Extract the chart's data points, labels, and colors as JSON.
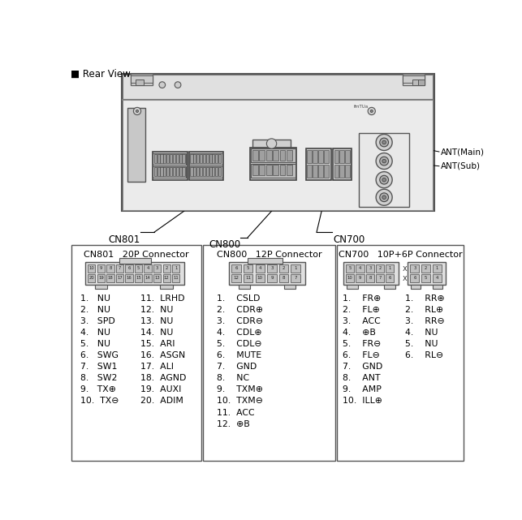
{
  "background_color": "#ffffff",
  "rear_view_label": "■ Rear View",
  "ant_main_label": "ANT(Main)",
  "ant_sub_label": "ANT(Sub)",
  "cn801_label": "CN801",
  "cn800_label": "CN800",
  "cn700_label": "CN700",
  "cn801_title": "CN801   20P Connector",
  "cn800_title": "CN800   12P Connector",
  "cn700_title": "CN700   10P+6P Connector",
  "cn801_left": [
    "1.   NU",
    "2.   NU",
    "3.   SPD",
    "4.   NU",
    "5.   NU",
    "6.   SWG",
    "7.   SW1",
    "8.   SW2",
    "9.   TX⊕",
    "10.  TX⊖"
  ],
  "cn801_right": [
    "11.  LRHD",
    "12.  NU",
    "13.  NU",
    "14.  NU",
    "15.  ARI",
    "16.  ASGN",
    "17.  ALI",
    "18.  AGND",
    "19.  AUXI",
    "20.  ADIM"
  ],
  "cn800_pins": [
    "1.    CSLD",
    "2.    CDR⊕",
    "3.    CDR⊖",
    "4.    CDL⊕",
    "5.    CDL⊖",
    "6.    MUTE",
    "7.    GND",
    "8.    NC",
    "9.    TXM⊕",
    "10.  TXM⊖",
    "11.  ACC",
    "12.  ⊕B"
  ],
  "cn700_left": [
    "1.    FR⊕",
    "2.    FL⊕",
    "3.    ACC",
    "4.    ⊕B",
    "5.    FR⊖",
    "6.    FL⊖",
    "7.    GND",
    "8.    ANT",
    "9.    AMP",
    "10.  ILL⊕"
  ],
  "cn700_right": [
    "1.    RR⊕",
    "2.    RL⊕",
    "3.    RR⊖",
    "4.    NU",
    "5.    NU",
    "6.    RL⊖"
  ]
}
